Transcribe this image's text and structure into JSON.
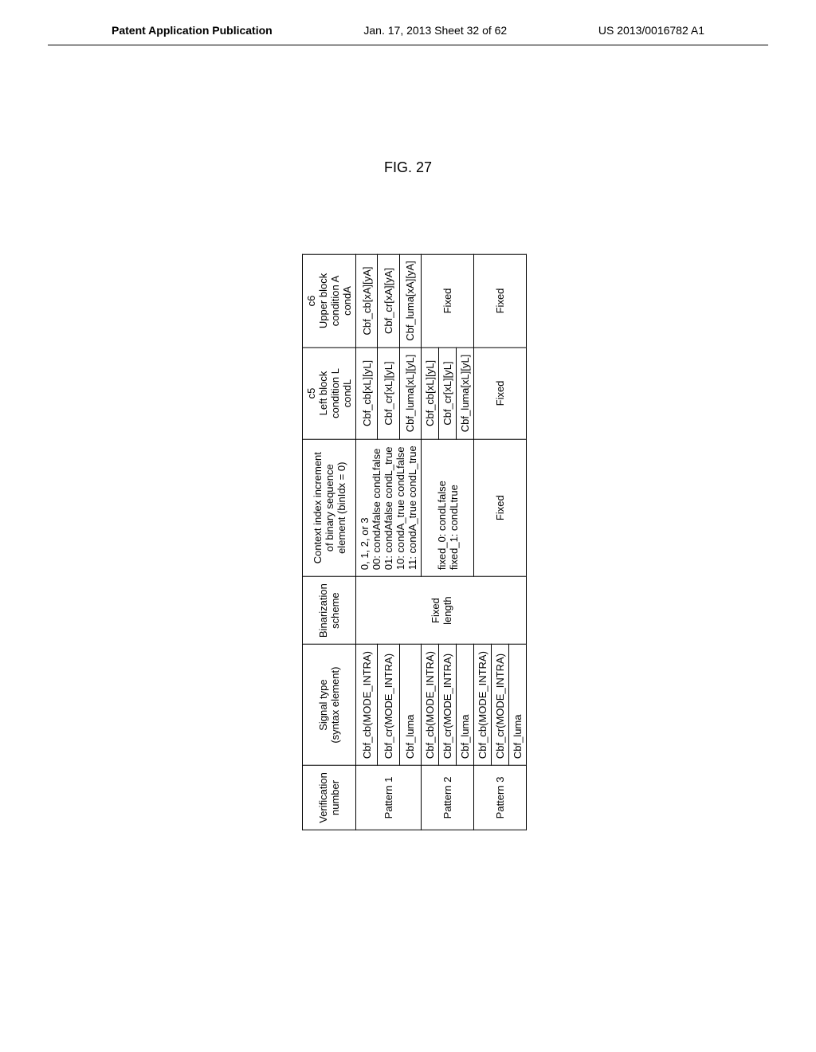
{
  "header": {
    "left": "Patent Application Publication",
    "center": "Jan. 17, 2013  Sheet 32 of 62",
    "right": "US 2013/0016782 A1"
  },
  "figure_label": "FIG. 27",
  "table": {
    "columns": {
      "verification": "Verification\nnumber",
      "signal_type": "Signal type\n(syntax element)",
      "binarization": "Binarization\nscheme",
      "context": "Context index increment\nof binary sequence\nelement (binIdx = 0)",
      "c5": "c5\nLeft block condition L\ncondL",
      "c6": "c6\nUpper block condition A\ncondA"
    },
    "rows": [
      {
        "verification": "Pattern 1",
        "signals": [
          "Cbf_cb(MODE_INTRA)",
          "Cbf_cr(MODE_INTRA)",
          "Cbf_luma"
        ],
        "binarization": "",
        "context": "0, 1, 2, or 3\n00: condAfalse condLfalse\n01: condAfalse condL_true\n10: condA_true condLfalse\n11: condA_true condL_true",
        "c5": [
          "Cbf_cb[xL][yL]",
          "Cbf_cr[xL][yL]",
          "Cbf_luma[xL][yL]"
        ],
        "c6": [
          "Cbf_cb[xA][yA]",
          "Cbf_cr[xA][yA]",
          "Cbf_luma[xA][yA]"
        ]
      },
      {
        "verification": "Pattern 2",
        "signals": [
          "Cbf_cb(MODE_INTRA)",
          "Cbf_cr(MODE_INTRA)",
          "Cbf_luma"
        ],
        "binarization": "Fixed\nlength",
        "context": "fixed_0: condLfalse\nfixed_1: condLtrue",
        "c5": [
          "Cbf_cb[xL][yL]",
          "Cbf_cr[xL][yL]",
          "Cbf_luma[xL][yL]"
        ],
        "c6": [
          "Fixed"
        ],
        "c6_merged": true
      },
      {
        "verification": "Pattern 3",
        "signals": [
          "Cbf_cb(MODE_INTRA)",
          "Cbf_cr(MODE_INTRA)",
          "Cbf_luma"
        ],
        "binarization": "",
        "context": "Fixed",
        "c5": [
          "Fixed"
        ],
        "c5_merged": true,
        "c6": [
          "Fixed"
        ],
        "c6_merged": true
      }
    ]
  }
}
